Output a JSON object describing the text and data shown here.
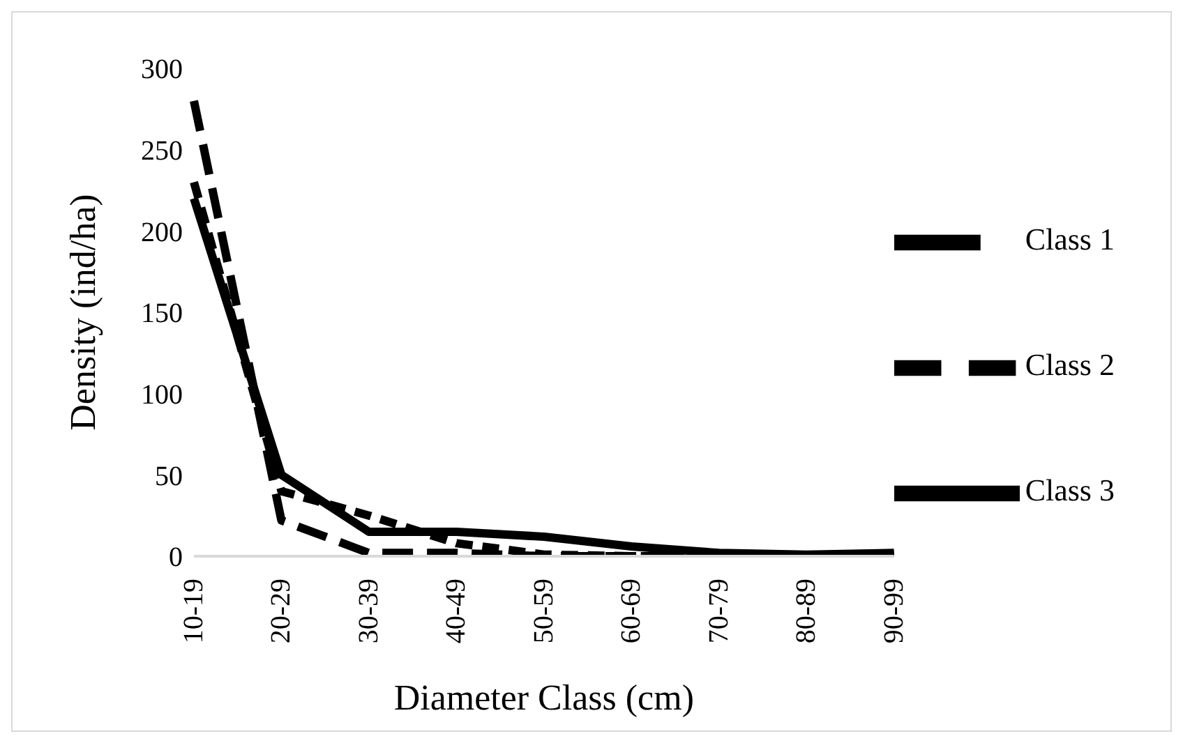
{
  "chart_data": {
    "type": "line",
    "xlabel": "Diameter Class (cm)",
    "ylabel": "Density (ind/ha)",
    "categories": [
      "10-19",
      "20-29",
      "30-39",
      "40-49",
      "50-59",
      "60-69",
      "70-79",
      "80-89",
      "90-99"
    ],
    "series": [
      {
        "name": "Class 1",
        "color": "#000000",
        "line_style": "dashed",
        "values": [
          280,
          22,
          2,
          2,
          0,
          0,
          0,
          0,
          0
        ]
      },
      {
        "name": "Class 2",
        "color": "#000000",
        "line_style": "dotted",
        "values": [
          230,
          40,
          25,
          8,
          1,
          0,
          0,
          0,
          1
        ]
      },
      {
        "name": "Class 3",
        "color": "#000000",
        "line_style": "solid",
        "values": [
          220,
          50,
          15,
          15,
          12,
          6,
          2,
          1,
          2
        ]
      }
    ],
    "ylim": [
      0,
      300
    ],
    "yticks": [
      0,
      50,
      100,
      150,
      200,
      250,
      300
    ],
    "grid": false,
    "legend": "right",
    "marker": "none"
  }
}
